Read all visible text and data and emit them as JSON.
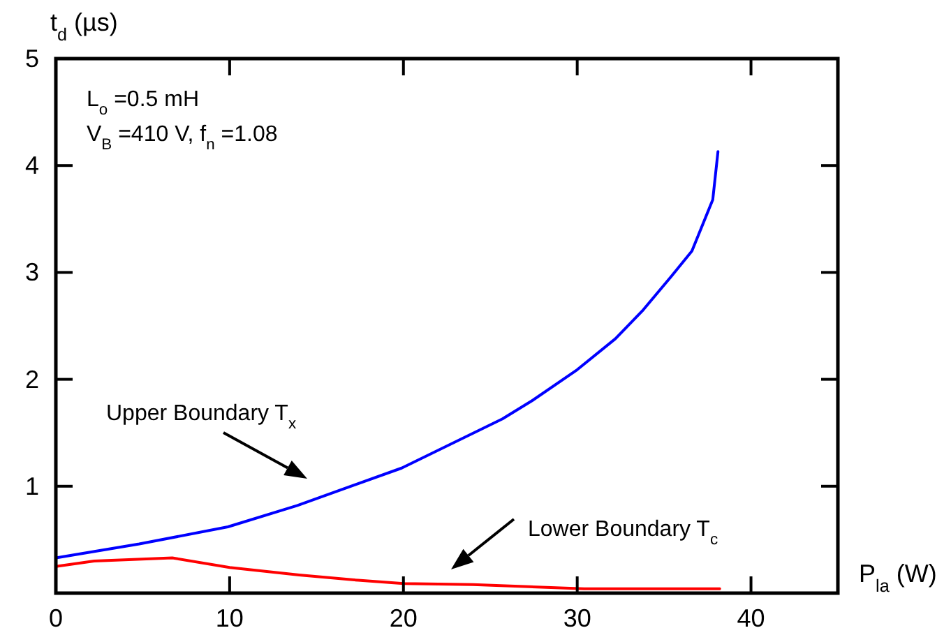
{
  "chart_data": {
    "type": "line",
    "xlabel": "P$_{la}$ (W)",
    "ylabel": "t$_{d}$ (µs)",
    "xlim": [
      0,
      45
    ],
    "ylim": [
      0,
      5
    ],
    "xticks": [
      0,
      10,
      20,
      30,
      40
    ],
    "yticks": [
      {
        "value": 0,
        "label": null
      },
      1,
      2,
      3,
      4,
      5
    ],
    "grid": false,
    "marker": "none",
    "line_style": "solid",
    "series": [
      {
        "color": "#0000ff",
        "x": [
          0,
          4.8,
          9.9,
          13.9,
          19.9,
          25.7,
          27.4,
          30,
          32.2,
          33.8,
          35.4,
          36.6,
          37.8,
          38.1
        ],
        "values": [
          0.33,
          0.46,
          0.62,
          0.82,
          1.17,
          1.63,
          1.8,
          2.09,
          2.38,
          2.65,
          2.96,
          3.2,
          3.68,
          4.13
        ]
      },
      {
        "color": "#ff0000",
        "x": [
          0,
          2.2,
          6.7,
          10,
          14,
          17.4,
          20,
          24,
          30.4,
          38.2
        ],
        "values": [
          0.25,
          0.3,
          0.33,
          0.24,
          0.17,
          0.12,
          0.09,
          0.08,
          0.04,
          0.04
        ]
      }
    ],
    "annotations": [
      "L$_{o}$ =0.5 mH",
      "V$_{B}$ =410 V, f$_{n}$ =1.08",
      "Upper Boundary T$_{x}$",
      "Lower Boundary T$_{c}$"
    ]
  }
}
